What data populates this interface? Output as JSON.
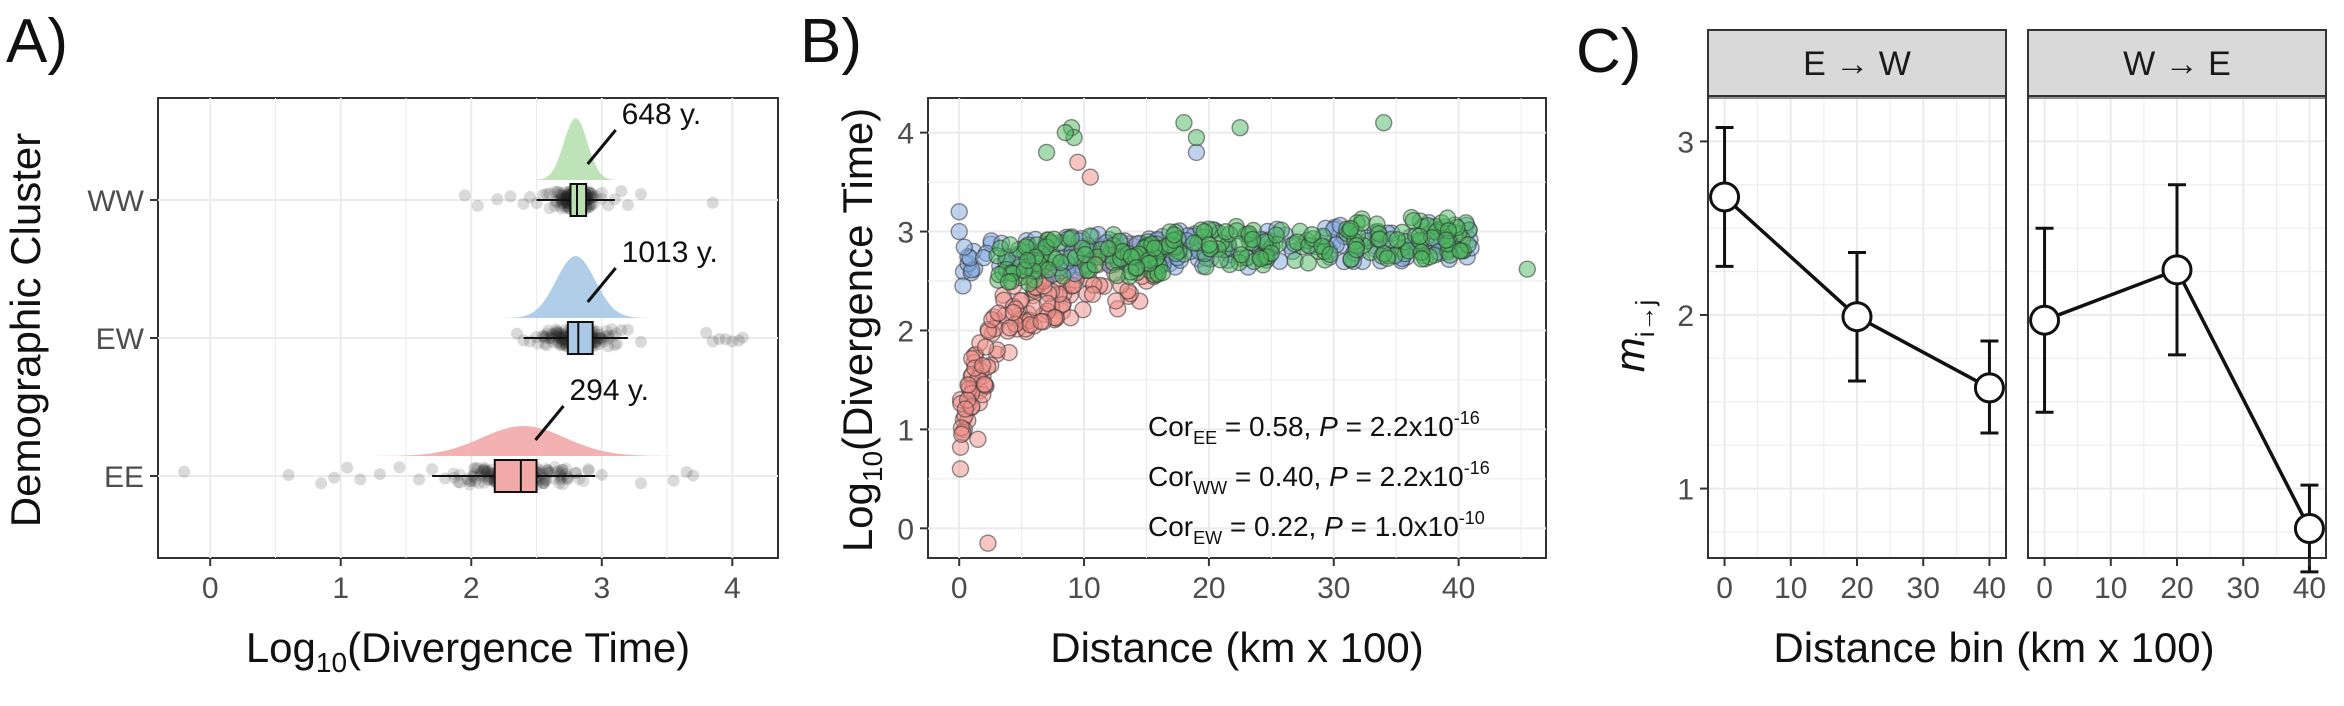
{
  "panels": {
    "A": {
      "letter": "A)",
      "xlabel_prefix": "Log",
      "xlabel_sub": "10",
      "xlabel_rest": "(Divergence Time)",
      "ylabel": "Demographic Cluster",
      "xlim": [
        -0.4,
        4.35
      ],
      "xticks": [
        "0",
        "1",
        "2",
        "3",
        "4"
      ],
      "clusters": [
        {
          "name": "WW",
          "color": "#b8e0b0",
          "median": 2.81,
          "q1": 2.76,
          "q3": 2.88,
          "whisker_lo": 2.5,
          "whisker_hi": 3.1,
          "density_peak": 2.8,
          "density_sd": 0.09,
          "label": "648 y.",
          "jitter": [
            1.95,
            2.05,
            2.2,
            2.3,
            2.4,
            2.45,
            2.5,
            2.55,
            2.6,
            2.65,
            2.7,
            2.72,
            2.75,
            2.78,
            2.8,
            2.82,
            2.85,
            2.88,
            2.9,
            2.92,
            2.95,
            3.0,
            3.05,
            3.1,
            3.15,
            3.2,
            3.3,
            3.85
          ]
        },
        {
          "name": "EW",
          "color": "#a9c9e6",
          "median": 2.82,
          "q1": 2.74,
          "q3": 2.93,
          "whisker_lo": 2.4,
          "whisker_hi": 3.2,
          "density_peak": 2.8,
          "density_sd": 0.15,
          "label": "1013 y.",
          "jitter": [
            2.35,
            2.4,
            2.45,
            2.5,
            2.55,
            2.6,
            2.65,
            2.7,
            2.75,
            2.8,
            2.85,
            2.9,
            2.95,
            3.0,
            3.05,
            3.1,
            3.15,
            3.2,
            3.3,
            3.8,
            3.85,
            3.9,
            3.95,
            4.0,
            4.05,
            4.08
          ]
        },
        {
          "name": "EE",
          "color": "#f2aaa8",
          "median": 2.38,
          "q1": 2.18,
          "q3": 2.5,
          "whisker_lo": 1.7,
          "whisker_hi": 2.95,
          "density_peak": 2.4,
          "density_sd": 0.32,
          "label": "294 y.",
          "jitter": [
            -0.2,
            0.6,
            0.85,
            0.95,
            1.05,
            1.15,
            1.3,
            1.45,
            1.6,
            1.7,
            1.8,
            1.9,
            2.0,
            2.05,
            2.1,
            2.15,
            2.2,
            2.25,
            2.3,
            2.35,
            2.4,
            2.45,
            2.5,
            2.55,
            2.6,
            2.7,
            2.8,
            2.9,
            3.0,
            3.3,
            3.55,
            3.65,
            3.7
          ]
        }
      ]
    },
    "B": {
      "letter": "B)",
      "xlabel": "Distance (km x 100)",
      "ylabel_prefix": "Log",
      "ylabel_sub": "10",
      "ylabel_rest": "(Divergence Time)",
      "xlim": [
        -2.5,
        47
      ],
      "ylim": [
        -0.3,
        4.35
      ],
      "xticks": [
        "0",
        "10",
        "20",
        "30",
        "40"
      ],
      "yticks": [
        "0",
        "1",
        "2",
        "3",
        "4"
      ],
      "series_colors": {
        "EE": "#f08d88",
        "EW": "#7fa6dd",
        "WW": "#4bb860"
      },
      "correlations": [
        {
          "name": "Cor",
          "sub": "EE",
          "value": "= 0.58,",
          "p_label": "P",
          "p_value": "= 2.2x10",
          "exp": "-16"
        },
        {
          "name": "Cor",
          "sub": "WW",
          "value": "= 0.40,",
          "p_label": "P",
          "p_value": "= 2.2x10",
          "exp": "-16"
        },
        {
          "name": "Cor",
          "sub": "EW",
          "value": "= 0.22,",
          "p_label": "P",
          "p_value": "= 1.0x10",
          "exp": "-10"
        }
      ]
    },
    "C": {
      "letter": "C)",
      "xlabel": "Distance bin (km x 100)",
      "ylabel_main": "m",
      "ylabel_sub": "i→j",
      "ylim": [
        0.6,
        3.25
      ],
      "xlim": [
        -2.5,
        42.5
      ],
      "xticks": [
        "0",
        "10",
        "20",
        "30",
        "40"
      ],
      "yticks": [
        "1",
        "2",
        "3"
      ],
      "facets": [
        {
          "label": "E → W",
          "x": [
            0,
            20,
            40
          ],
          "y": [
            2.68,
            1.99,
            1.58
          ],
          "lo": [
            2.28,
            1.62,
            1.32
          ],
          "hi": [
            3.08,
            2.36,
            1.85
          ]
        },
        {
          "label": "W → E",
          "x": [
            0,
            20,
            40
          ],
          "y": [
            1.97,
            2.26,
            0.77
          ],
          "lo": [
            1.44,
            1.77,
            0.52
          ],
          "hi": [
            2.5,
            2.75,
            1.02
          ]
        }
      ]
    }
  },
  "chart_data": [
    {
      "type": "scatter",
      "panel": "A",
      "xlabel": "Log10(Divergence Time)",
      "ylabel": "Demographic Cluster",
      "categories": [
        "WW",
        "EW",
        "EE"
      ],
      "medians": [
        2.81,
        2.82,
        2.38
      ],
      "annotations": [
        "648 y.",
        "1013 y.",
        "294 y."
      ],
      "xlim": [
        -0.4,
        4.35
      ]
    },
    {
      "type": "scatter",
      "panel": "B",
      "xlabel": "Distance (km x 100)",
      "ylabel": "Log10(Divergence Time)",
      "xlim": [
        -2.5,
        47
      ],
      "ylim": [
        -0.3,
        4.35
      ],
      "series": [
        {
          "name": "EE",
          "trend": "rises from ~1.0 at 0 to ~2.6 at 15"
        },
        {
          "name": "EW",
          "trend": "~2.7 at 0 to ~2.9 at 40"
        },
        {
          "name": "WW",
          "trend": "~2.6 at 5 to ~3.0 at 30"
        }
      ]
    },
    {
      "type": "line",
      "panel": "C",
      "xlabel": "Distance bin (km x 100)",
      "ylabel": "m i→j",
      "series": [
        {
          "name": "E → W",
          "x": [
            0,
            20,
            40
          ],
          "y": [
            2.68,
            1.99,
            1.58
          ],
          "ci_lo": [
            2.28,
            1.62,
            1.32
          ],
          "ci_hi": [
            3.08,
            2.36,
            1.85
          ]
        },
        {
          "name": "W → E",
          "x": [
            0,
            20,
            40
          ],
          "y": [
            1.97,
            2.26,
            0.77
          ],
          "ci_lo": [
            1.44,
            1.77,
            0.52
          ],
          "ci_hi": [
            2.5,
            2.75,
            1.02
          ]
        }
      ],
      "ylim": [
        0.6,
        3.25
      ]
    }
  ]
}
